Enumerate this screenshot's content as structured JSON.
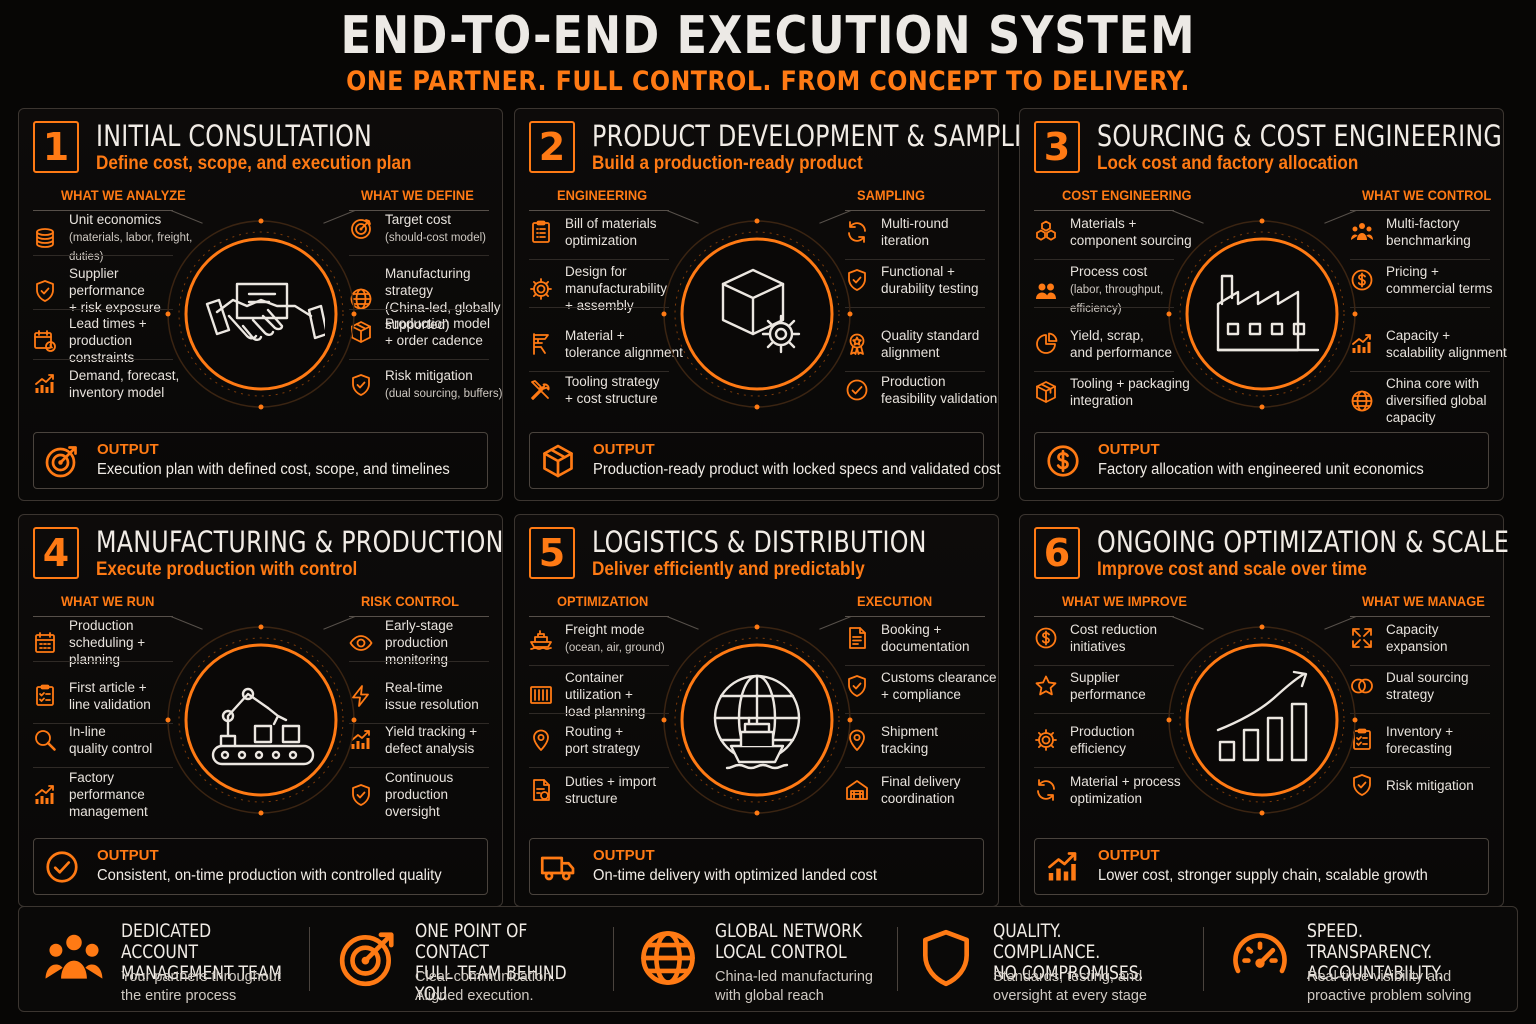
{
  "title": "END-TO-END EXECUTION SYSTEM",
  "subtitle": "ONE PARTNER. FULL CONTROL. FROM CONCEPT TO DELIVERY.",
  "accent_color": "#ff7a14",
  "output_label": "OUTPUT",
  "panels": [
    {
      "number": "1",
      "title": "INITIAL CONSULTATION",
      "subtitle": "Define cost, scope, and execution plan",
      "left_heading": "WHAT WE ANALYZE",
      "right_heading": "WHAT WE DEFINE",
      "center_icon": "handshake-icon",
      "left_items": [
        {
          "icon": "coins-icon",
          "text": "Unit economics",
          "note": "(materials, labor, freight, duties)"
        },
        {
          "icon": "shield-check-icon",
          "text": "Supplier performance\n+ risk exposure"
        },
        {
          "icon": "calendar-clock-icon",
          "text": "Lead times +\nproduction constraints"
        },
        {
          "icon": "bar-chart-up-icon",
          "text": "Demand, forecast,\ninventory model"
        }
      ],
      "right_items": [
        {
          "icon": "target-icon",
          "text": "Target cost",
          "note": "(should-cost model)"
        },
        {
          "icon": "globe-icon",
          "text": "Manufacturing strategy\n(China-led, globally\nsupported)"
        },
        {
          "icon": "boxes-icon",
          "text": "Production model\n+ order cadence"
        },
        {
          "icon": "shield-check-icon",
          "text": "Risk mitigation",
          "note": "(dual sourcing, buffers)"
        }
      ],
      "output_icon": "target-arrow-icon",
      "output_text": "Execution plan with defined cost, scope, and timelines"
    },
    {
      "number": "2",
      "title": "PRODUCT DEVELOPMENT & SAMPLING",
      "subtitle": "Build a production-ready product",
      "left_heading": "ENGINEERING",
      "right_heading": "SAMPLING",
      "center_icon": "box-gear-icon",
      "left_items": [
        {
          "icon": "clipboard-list-icon",
          "text": "Bill of materials\noptimization"
        },
        {
          "icon": "gear-icon",
          "text": "Design for\nmanufacturability\n+ assembly"
        },
        {
          "icon": "caliper-icon",
          "text": "Material +\ntolerance alignment"
        },
        {
          "icon": "tools-icon",
          "text": "Tooling strategy\n+ cost structure"
        }
      ],
      "right_items": [
        {
          "icon": "refresh-icon",
          "text": "Multi-round\niteration"
        },
        {
          "icon": "shield-check-icon",
          "text": "Functional +\ndurability testing"
        },
        {
          "icon": "award-icon",
          "text": "Quality standard\nalignment"
        },
        {
          "icon": "check-circle-icon",
          "text": "Production\nfeasibility validation"
        }
      ],
      "output_icon": "cube-icon",
      "output_text": "Production-ready product with locked specs and validated cost"
    },
    {
      "number": "3",
      "title": "SOURCING & COST ENGINEERING",
      "subtitle": "Lock cost and factory allocation",
      "left_heading": "COST ENGINEERING",
      "right_heading": "WHAT WE CONTROL",
      "center_icon": "factory-icon",
      "left_items": [
        {
          "icon": "hexagons-icon",
          "text": "Materials +\ncomponent sourcing"
        },
        {
          "icon": "users-icon",
          "text": "Process cost",
          "note": "(labor, throughput,\nefficiency)"
        },
        {
          "icon": "pie-chart-icon",
          "text": "Yield, scrap,\nand performance"
        },
        {
          "icon": "package-icon",
          "text": "Tooling + packaging\nintegration"
        }
      ],
      "right_items": [
        {
          "icon": "team-icon",
          "text": "Multi-factory\nbenchmarking"
        },
        {
          "icon": "dollar-circle-icon",
          "text": "Pricing +\ncommercial terms"
        },
        {
          "icon": "bar-chart-up-icon",
          "text": "Capacity +\nscalability alignment"
        },
        {
          "icon": "globe-icon",
          "text": "China core with\ndiversified global\ncapacity"
        }
      ],
      "output_icon": "dollar-circle-icon",
      "output_text": "Factory allocation with engineered unit economics"
    },
    {
      "number": "4",
      "title": "MANUFACTURING & PRODUCTION",
      "subtitle": "Execute production with control",
      "left_heading": "WHAT WE RUN",
      "right_heading": "RISK CONTROL",
      "center_icon": "robot-arm-conveyor-icon",
      "left_items": [
        {
          "icon": "calendar-icon",
          "text": "Production\nscheduling +\nplanning"
        },
        {
          "icon": "checklist-icon",
          "text": "First article +\nline validation"
        },
        {
          "icon": "magnifier-icon",
          "text": "In-line\nquality control"
        },
        {
          "icon": "bar-chart-up-icon",
          "text": "Factory\nperformance\nmanagement"
        }
      ],
      "right_items": [
        {
          "icon": "eye-icon",
          "text": "Early-stage\nproduction\nmonitoring"
        },
        {
          "icon": "lightning-icon",
          "text": "Real-time\nissue resolution"
        },
        {
          "icon": "bar-chart-up-icon",
          "text": "Yield tracking +\ndefect analysis"
        },
        {
          "icon": "shield-check-icon",
          "text": "Continuous\nproduction\noversight"
        }
      ],
      "output_icon": "check-circle-icon",
      "output_text": "Consistent, on-time production with controlled quality"
    },
    {
      "number": "5",
      "title": "LOGISTICS & DISTRIBUTION",
      "subtitle": "Deliver efficiently and predictably",
      "left_heading": "OPTIMIZATION",
      "right_heading": "EXECUTION",
      "center_icon": "globe-ship-icon",
      "left_items": [
        {
          "icon": "ship-icon",
          "text": "Freight mode",
          "note": "(ocean, air, ground)"
        },
        {
          "icon": "container-icon",
          "text": "Container\nutilization +\nload planning"
        },
        {
          "icon": "map-pin-icon",
          "text": "Routing +\nport strategy"
        },
        {
          "icon": "document-dollar-icon",
          "text": "Duties + import\nstructure"
        }
      ],
      "right_items": [
        {
          "icon": "document-icon",
          "text": "Booking +\ndocumentation"
        },
        {
          "icon": "shield-check-icon",
          "text": "Customs clearance\n+ compliance"
        },
        {
          "icon": "map-pin-icon",
          "text": "Shipment\ntracking"
        },
        {
          "icon": "warehouse-icon",
          "text": "Final delivery\ncoordination"
        }
      ],
      "output_icon": "truck-icon",
      "output_text": "On-time delivery with optimized landed cost"
    },
    {
      "number": "6",
      "title": "ONGOING OPTIMIZATION & SCALE",
      "subtitle": "Improve cost and scale over time",
      "left_heading": "WHAT WE IMPROVE",
      "right_heading": "WHAT WE MANAGE",
      "center_icon": "growth-chart-icon",
      "left_items": [
        {
          "icon": "dollar-circle-icon",
          "text": "Cost reduction\ninitiatives"
        },
        {
          "icon": "star-icon",
          "text": "Supplier\nperformance"
        },
        {
          "icon": "gear-icon",
          "text": "Production\nefficiency"
        },
        {
          "icon": "refresh-icon",
          "text": "Material + process\noptimization"
        }
      ],
      "right_items": [
        {
          "icon": "expand-icon",
          "text": "Capacity\nexpansion"
        },
        {
          "icon": "rings-icon",
          "text": "Dual sourcing\nstrategy"
        },
        {
          "icon": "checklist-icon",
          "text": "Inventory +\nforecasting"
        },
        {
          "icon": "shield-check-icon",
          "text": "Risk mitigation"
        }
      ],
      "output_icon": "bar-chart-up-icon",
      "output_text": "Lower cost, stronger supply chain, scalable growth"
    }
  ],
  "footer": [
    {
      "icon": "team-icon",
      "title": "DEDICATED ACCOUNT\nMANAGEMENT TEAM",
      "desc": "Your partners throughout\nthe entire process"
    },
    {
      "icon": "target-arrow-icon",
      "title": "ONE POINT OF CONTACT\nFULL TEAM BEHIND YOU",
      "desc": "Clear communication.\nAligned execution."
    },
    {
      "icon": "globe-icon",
      "title": "GLOBAL NETWORK\nLOCAL CONTROL",
      "desc": "China-led manufacturing\nwith global reach"
    },
    {
      "icon": "shield-icon",
      "title": "QUALITY. COMPLIANCE.\nNO COMPROMISES.",
      "desc": "Standards, testing, and\noversight at every stage"
    },
    {
      "icon": "speedometer-icon",
      "title": "SPEED. TRANSPARENCY.\nACCOUNTABILITY.",
      "desc": "Real-time visibility and\nproactive problem solving"
    }
  ]
}
